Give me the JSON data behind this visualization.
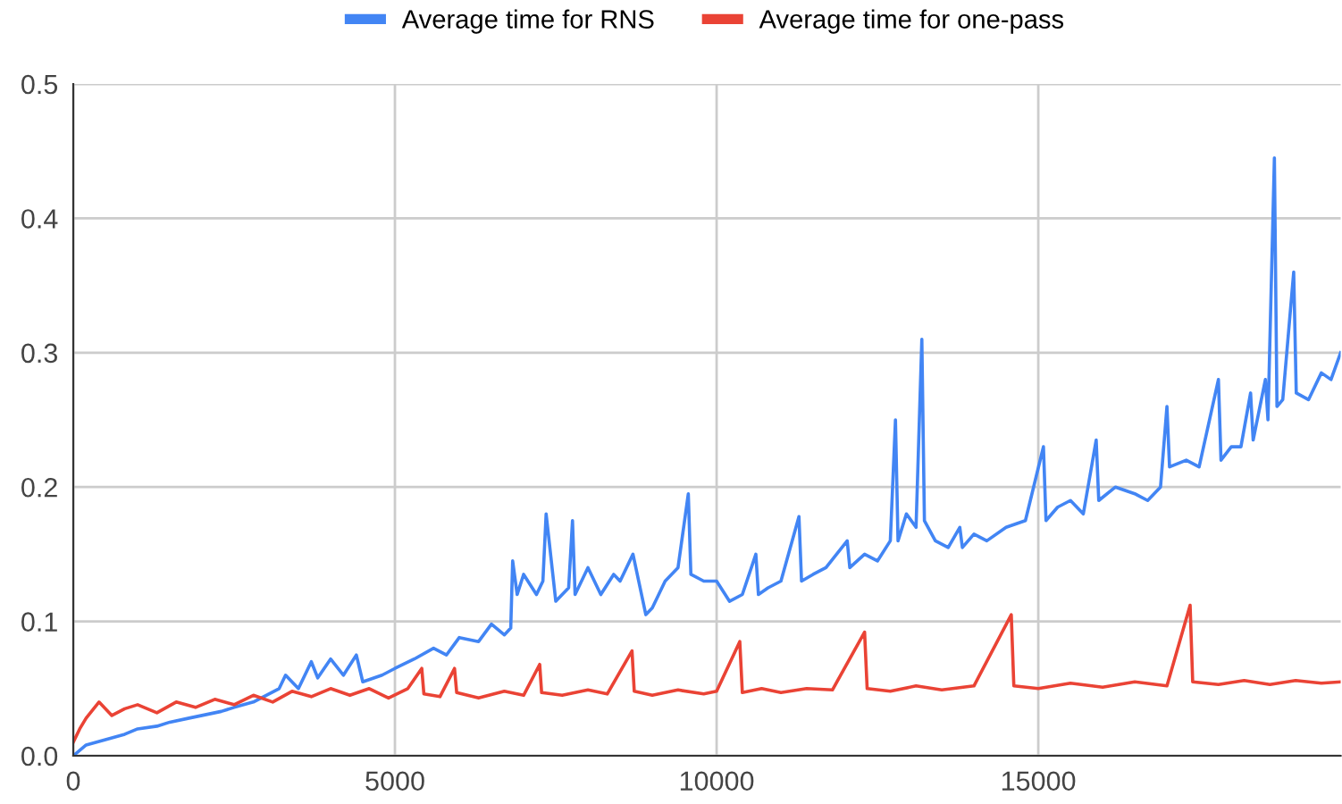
{
  "chart_data": {
    "type": "line",
    "series": [
      {
        "name": "Average time for RNS",
        "color": "#4285f4",
        "x": [
          0,
          200,
          500,
          800,
          1000,
          1300,
          1500,
          1800,
          2000,
          2300,
          2500,
          2800,
          3000,
          3200,
          3300,
          3500,
          3700,
          3800,
          4000,
          4200,
          4400,
          4500,
          4800,
          5000,
          5300,
          5600,
          5800,
          6000,
          6300,
          6500,
          6700,
          6800,
          6830,
          6900,
          7000,
          7200,
          7300,
          7350,
          7500,
          7700,
          7760,
          7800,
          8000,
          8200,
          8400,
          8500,
          8700,
          8900,
          9000,
          9200,
          9400,
          9560,
          9600,
          9800,
          10000,
          10200,
          10400,
          10610,
          10650,
          10800,
          11000,
          11280,
          11320,
          11500,
          11700,
          12030,
          12070,
          12300,
          12500,
          12700,
          12780,
          12820,
          12950,
          13100,
          13190,
          13230,
          13400,
          13600,
          13780,
          13820,
          14000,
          14200,
          14500,
          14800,
          15080,
          15120,
          15300,
          15500,
          15700,
          15900,
          15940,
          16200,
          16500,
          16700,
          16900,
          17000,
          17040,
          17300,
          17500,
          17800,
          17840,
          18000,
          18150,
          18300,
          18340,
          18530,
          18570,
          18670,
          18710,
          18800,
          18970,
          19010,
          19200,
          19400,
          19550,
          19700
        ],
        "values": [
          0,
          0.008,
          0.012,
          0.016,
          0.02,
          0.022,
          0.025,
          0.028,
          0.03,
          0.033,
          0.036,
          0.04,
          0.045,
          0.05,
          0.06,
          0.05,
          0.07,
          0.058,
          0.072,
          0.06,
          0.075,
          0.055,
          0.06,
          0.065,
          0.072,
          0.08,
          0.075,
          0.088,
          0.085,
          0.098,
          0.09,
          0.095,
          0.145,
          0.12,
          0.135,
          0.12,
          0.13,
          0.18,
          0.115,
          0.125,
          0.175,
          0.12,
          0.14,
          0.12,
          0.135,
          0.13,
          0.15,
          0.105,
          0.11,
          0.13,
          0.14,
          0.195,
          0.135,
          0.13,
          0.13,
          0.115,
          0.12,
          0.15,
          0.12,
          0.125,
          0.13,
          0.178,
          0.13,
          0.135,
          0.14,
          0.16,
          0.14,
          0.15,
          0.145,
          0.16,
          0.25,
          0.16,
          0.18,
          0.17,
          0.31,
          0.175,
          0.16,
          0.155,
          0.17,
          0.155,
          0.165,
          0.16,
          0.17,
          0.175,
          0.23,
          0.175,
          0.185,
          0.19,
          0.18,
          0.235,
          0.19,
          0.2,
          0.195,
          0.19,
          0.2,
          0.26,
          0.215,
          0.22,
          0.215,
          0.28,
          0.22,
          0.23,
          0.23,
          0.27,
          0.235,
          0.28,
          0.25,
          0.445,
          0.26,
          0.265,
          0.36,
          0.27,
          0.265,
          0.285,
          0.28,
          0.3
        ]
      },
      {
        "name": "Average time for one-pass",
        "color": "#ea4335",
        "x": [
          0,
          100,
          200,
          400,
          600,
          800,
          1000,
          1300,
          1600,
          1900,
          2200,
          2500,
          2800,
          3100,
          3400,
          3700,
          4000,
          4300,
          4600,
          4900,
          5200,
          5417,
          5450,
          5700,
          5926,
          5960,
          6300,
          6700,
          7000,
          7250,
          7280,
          7600,
          8000,
          8300,
          8685,
          8720,
          9000,
          9400,
          9800,
          10000,
          10360,
          10400,
          10700,
          11000,
          11400,
          11800,
          12300,
          12340,
          12700,
          13100,
          13500,
          14000,
          14580,
          14620,
          15000,
          15500,
          16000,
          16500,
          17000,
          17360,
          17400,
          17800,
          18200,
          18600,
          19000,
          19400,
          19700
        ],
        "values": [
          0.01,
          0.02,
          0.028,
          0.04,
          0.03,
          0.035,
          0.038,
          0.032,
          0.04,
          0.036,
          0.042,
          0.038,
          0.045,
          0.04,
          0.048,
          0.044,
          0.05,
          0.045,
          0.05,
          0.043,
          0.05,
          0.065,
          0.046,
          0.044,
          0.065,
          0.047,
          0.043,
          0.048,
          0.045,
          0.068,
          0.047,
          0.045,
          0.049,
          0.046,
          0.078,
          0.048,
          0.045,
          0.049,
          0.046,
          0.048,
          0.085,
          0.047,
          0.05,
          0.047,
          0.05,
          0.049,
          0.092,
          0.05,
          0.048,
          0.052,
          0.049,
          0.052,
          0.105,
          0.052,
          0.05,
          0.054,
          0.051,
          0.055,
          0.052,
          0.112,
          0.055,
          0.053,
          0.056,
          0.053,
          0.056,
          0.054,
          0.055
        ]
      }
    ],
    "xlim": [
      0,
      19700
    ],
    "xticks": [
      0,
      5000,
      10000,
      15000
    ],
    "ylim": [
      0,
      0.5
    ],
    "yticks": [
      {
        "value": 0,
        "label": "0.0"
      },
      0.1,
      0.2,
      0.3,
      0.4,
      0.5
    ],
    "grid": true,
    "legend": "top",
    "marker": "none",
    "line_style": "solid"
  }
}
